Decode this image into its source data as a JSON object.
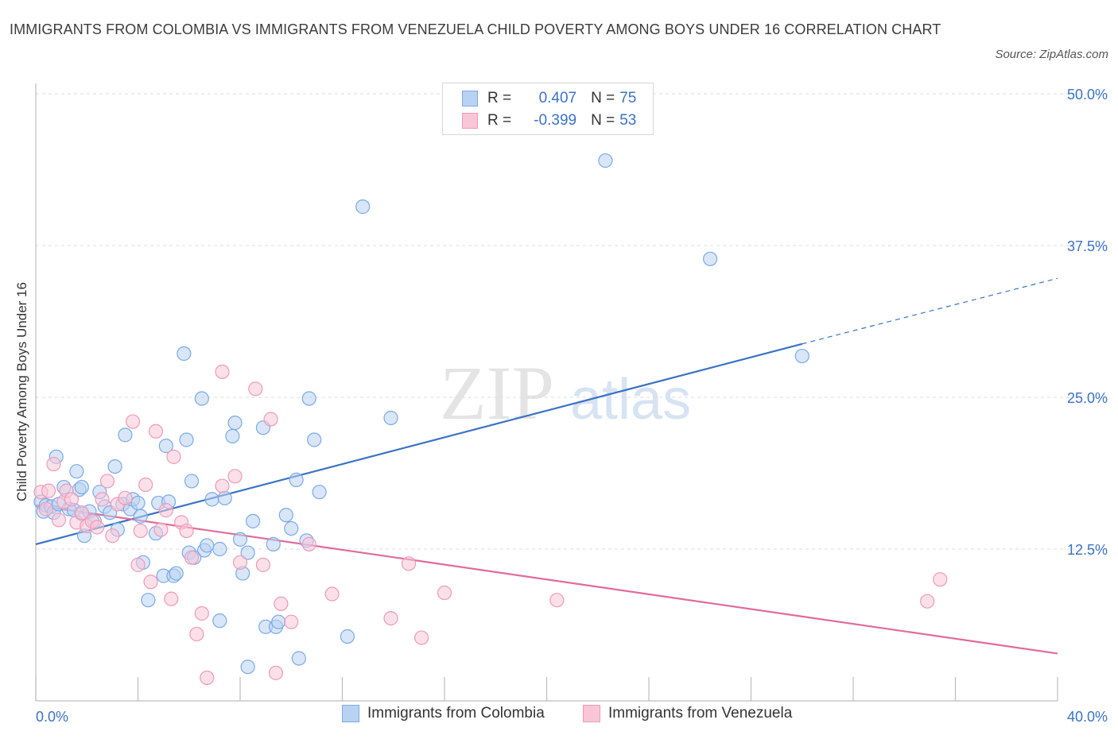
{
  "header": {
    "title": "IMMIGRANTS FROM COLOMBIA VS IMMIGRANTS FROM VENEZUELA CHILD POVERTY AMONG BOYS UNDER 16 CORRELATION CHART",
    "source": "Source: ZipAtlas.com"
  },
  "legend": {
    "rows": [
      {
        "r_label": "R =",
        "r_value": "0.407",
        "n_label": "N =",
        "n_value": "75"
      },
      {
        "r_label": "R =",
        "r_value": "-0.399",
        "n_label": "N =",
        "n_value": "53"
      }
    ]
  },
  "watermark": {
    "zip": "ZIP",
    "atlas": "atlas"
  },
  "colors": {
    "colombia": "#7aaae8",
    "colombia_fill": "#b9d2f3",
    "colombia_line": "#3b72c6",
    "venezuela": "#ef9ab8",
    "venezuela_fill": "#f8c6d7",
    "venezuela_line": "#e06c98",
    "tick_label": "#3b72c6",
    "grid": "#dcdcdc"
  },
  "chart_data": {
    "type": "scatter",
    "title": "IMMIGRANTS FROM COLOMBIA VS IMMIGRANTS FROM VENEZUELA CHILD POVERTY AMONG BOYS UNDER 16 CORRELATION CHART",
    "xlabel": "",
    "ylabel": "Child Poverty Among Boys Under 16",
    "xlim": [
      0,
      40
    ],
    "ylim": [
      0,
      50
    ],
    "x_tick_labels": [
      "0.0%",
      "40.0%"
    ],
    "y_ticks": [
      12.5,
      25.0,
      37.5,
      50.0
    ],
    "y_tick_labels": [
      "12.5%",
      "25.0%",
      "37.5%",
      "50.0%"
    ],
    "grid": true,
    "series": [
      {
        "name": "Immigrants from Colombia",
        "color": "#7aaae8",
        "r": 0.407,
        "n": 75,
        "trend": {
          "x0": 0,
          "y0": 12.9,
          "x1": 30.0,
          "y1": 29.4,
          "dash_to_x": 40,
          "dash_to_y": 34.8
        },
        "points": [
          [
            0.2,
            16.4
          ],
          [
            0.3,
            15.6
          ],
          [
            0.4,
            16.1
          ],
          [
            0.6,
            16.0
          ],
          [
            0.7,
            15.5
          ],
          [
            0.8,
            20.1
          ],
          [
            0.9,
            16.2
          ],
          [
            1.1,
            17.6
          ],
          [
            1.3,
            15.8
          ],
          [
            1.5,
            15.7
          ],
          [
            1.6,
            18.9
          ],
          [
            1.7,
            17.4
          ],
          [
            1.8,
            15.4
          ],
          [
            1.8,
            17.6
          ],
          [
            1.9,
            13.6
          ],
          [
            2.1,
            15.6
          ],
          [
            2.3,
            14.8
          ],
          [
            2.5,
            17.2
          ],
          [
            2.7,
            16.0
          ],
          [
            2.9,
            15.5
          ],
          [
            3.1,
            19.3
          ],
          [
            3.2,
            14.1
          ],
          [
            3.4,
            16.2
          ],
          [
            3.5,
            21.9
          ],
          [
            3.7,
            15.8
          ],
          [
            3.8,
            16.6
          ],
          [
            4.0,
            16.3
          ],
          [
            4.1,
            15.2
          ],
          [
            4.2,
            11.4
          ],
          [
            4.4,
            8.3
          ],
          [
            4.7,
            13.8
          ],
          [
            4.8,
            16.3
          ],
          [
            5.0,
            10.3
          ],
          [
            5.1,
            21.0
          ],
          [
            5.2,
            16.4
          ],
          [
            5.4,
            10.3
          ],
          [
            5.5,
            10.5
          ],
          [
            5.8,
            28.6
          ],
          [
            5.9,
            21.5
          ],
          [
            6.0,
            12.2
          ],
          [
            6.1,
            18.1
          ],
          [
            6.2,
            11.8
          ],
          [
            6.5,
            24.9
          ],
          [
            6.6,
            12.4
          ],
          [
            6.7,
            12.8
          ],
          [
            6.9,
            16.6
          ],
          [
            7.2,
            6.6
          ],
          [
            7.2,
            12.5
          ],
          [
            7.4,
            16.7
          ],
          [
            7.7,
            21.8
          ],
          [
            7.8,
            22.9
          ],
          [
            8.0,
            13.3
          ],
          [
            8.1,
            10.5
          ],
          [
            8.3,
            2.8
          ],
          [
            8.3,
            12.2
          ],
          [
            8.5,
            14.8
          ],
          [
            8.9,
            22.5
          ],
          [
            9.0,
            6.1
          ],
          [
            9.3,
            12.9
          ],
          [
            9.4,
            6.1
          ],
          [
            9.5,
            6.5
          ],
          [
            9.8,
            15.3
          ],
          [
            10.0,
            14.2
          ],
          [
            10.2,
            18.2
          ],
          [
            10.3,
            3.5
          ],
          [
            10.6,
            13.2
          ],
          [
            10.7,
            24.9
          ],
          [
            10.9,
            21.5
          ],
          [
            11.1,
            17.2
          ],
          [
            12.2,
            5.3
          ],
          [
            12.8,
            40.7
          ],
          [
            13.9,
            23.3
          ],
          [
            22.3,
            44.5
          ],
          [
            26.4,
            36.4
          ],
          [
            30.0,
            28.4
          ]
        ]
      },
      {
        "name": "Immigrants from Venezuela",
        "color": "#ef9ab8",
        "r": -0.399,
        "n": 53,
        "trend": {
          "x0": 0,
          "y0": 16.1,
          "x1": 40,
          "y1": 3.9
        },
        "points": [
          [
            0.2,
            17.2
          ],
          [
            0.4,
            15.8
          ],
          [
            0.5,
            17.3
          ],
          [
            0.7,
            19.5
          ],
          [
            0.9,
            14.9
          ],
          [
            1.1,
            16.4
          ],
          [
            1.2,
            17.3
          ],
          [
            1.4,
            16.6
          ],
          [
            1.6,
            14.7
          ],
          [
            1.8,
            15.5
          ],
          [
            2.0,
            14.4
          ],
          [
            2.2,
            14.8
          ],
          [
            2.4,
            14.3
          ],
          [
            2.6,
            16.6
          ],
          [
            2.8,
            18.1
          ],
          [
            3.0,
            13.6
          ],
          [
            3.2,
            16.2
          ],
          [
            3.5,
            16.7
          ],
          [
            3.8,
            23.0
          ],
          [
            4.0,
            11.2
          ],
          [
            4.1,
            14.0
          ],
          [
            4.3,
            17.8
          ],
          [
            4.5,
            9.8
          ],
          [
            4.7,
            22.2
          ],
          [
            4.9,
            14.1
          ],
          [
            5.1,
            15.7
          ],
          [
            5.3,
            8.4
          ],
          [
            5.4,
            20.1
          ],
          [
            5.7,
            14.7
          ],
          [
            5.9,
            14.0
          ],
          [
            6.1,
            11.8
          ],
          [
            6.3,
            5.5
          ],
          [
            6.5,
            7.2
          ],
          [
            6.7,
            1.9
          ],
          [
            7.3,
            27.1
          ],
          [
            7.3,
            17.7
          ],
          [
            7.8,
            18.5
          ],
          [
            8.0,
            11.4
          ],
          [
            8.6,
            25.7
          ],
          [
            8.9,
            11.2
          ],
          [
            9.2,
            23.2
          ],
          [
            9.4,
            2.3
          ],
          [
            9.6,
            8.0
          ],
          [
            10.0,
            6.5
          ],
          [
            10.7,
            12.9
          ],
          [
            11.6,
            8.8
          ],
          [
            13.9,
            6.8
          ],
          [
            14.6,
            11.3
          ],
          [
            15.1,
            5.2
          ],
          [
            16.0,
            8.9
          ],
          [
            20.4,
            8.3
          ],
          [
            34.9,
            8.2
          ],
          [
            35.4,
            10.0
          ]
        ]
      }
    ]
  },
  "bottom_legend": {
    "colombia": "Immigrants from Colombia",
    "venezuela": "Immigrants from Venezuela"
  }
}
